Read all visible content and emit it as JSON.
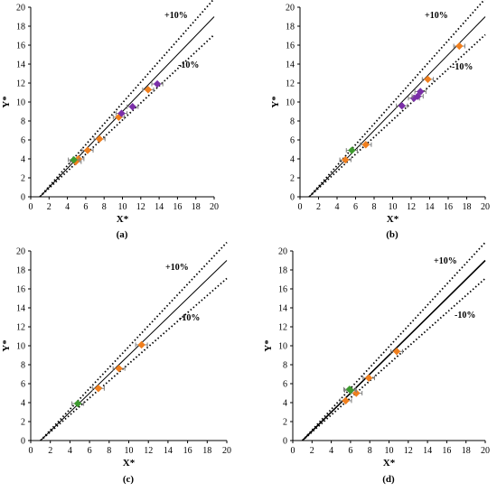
{
  "colors": {
    "orange": "#f07f1e",
    "purple": "#7a2fa8",
    "green": "#3d9a2e",
    "errorbar": "#7f7f7f",
    "line": "#000000"
  },
  "chart_data": [
    {
      "type": "scatter",
      "caption": "(a)",
      "xlabel": "X*",
      "ylabel": "Y*",
      "xlim": [
        0,
        20
      ],
      "ylim": [
        0,
        20
      ],
      "xticks": [
        "0",
        "2",
        "4",
        "6",
        "8",
        "10",
        "12",
        "14",
        "16",
        "18",
        "20"
      ],
      "yticks": [
        "0",
        "2",
        "4",
        "6",
        "8",
        "10",
        "12",
        "14",
        "16",
        "18",
        "20"
      ],
      "grid": false,
      "annotations": [
        {
          "text": "+10%"
        },
        {
          "text": "-10%"
        }
      ],
      "series": [
        {
          "color": "orange",
          "marker": "diamond",
          "points": [
            [
              4.9,
              3.7
            ],
            [
              5.2,
              4.0
            ],
            [
              6.2,
              4.9
            ],
            [
              7.5,
              6.1
            ],
            [
              9.6,
              8.4
            ],
            [
              12.8,
              11.3
            ]
          ]
        },
        {
          "color": "purple",
          "marker": "diamond",
          "points": [
            [
              9.9,
              8.8
            ],
            [
              11.1,
              9.5
            ],
            [
              13.8,
              11.9
            ]
          ]
        },
        {
          "color": "green",
          "marker": "diamond",
          "points": [
            [
              4.7,
              3.9
            ]
          ]
        }
      ]
    },
    {
      "type": "scatter",
      "caption": "(b)",
      "xlabel": "X*",
      "ylabel": "Y*",
      "xlim": [
        0,
        20
      ],
      "ylim": [
        0,
        20
      ],
      "xticks": [
        "0",
        "2",
        "4",
        "6",
        "8",
        "10",
        "12",
        "14",
        "16",
        "18",
        "20"
      ],
      "yticks": [
        "0",
        "2",
        "4",
        "6",
        "8",
        "10",
        "12",
        "14",
        "16",
        "18",
        "20"
      ],
      "grid": false,
      "annotations": [
        {
          "text": "+10%"
        },
        {
          "text": "-10%"
        }
      ],
      "series": [
        {
          "color": "orange",
          "marker": "diamond",
          "points": [
            [
              4.9,
              3.9
            ],
            [
              7.1,
              5.5
            ],
            [
              13.8,
              12.4
            ],
            [
              17.2,
              15.9
            ]
          ]
        },
        {
          "color": "purple",
          "marker": "diamond",
          "points": [
            [
              11.0,
              9.6
            ],
            [
              12.3,
              10.4
            ],
            [
              12.7,
              10.6
            ],
            [
              13.0,
              11.1
            ]
          ]
        },
        {
          "color": "green",
          "marker": "diamond",
          "points": [
            [
              5.6,
              4.9
            ]
          ]
        }
      ]
    },
    {
      "type": "scatter",
      "caption": "(c)",
      "xlabel": "X*",
      "ylabel": "Y*",
      "xlim": [
        0,
        20
      ],
      "ylim": [
        0,
        20
      ],
      "xticks": [
        "0",
        "2",
        "4",
        "6",
        "8",
        "10",
        "12",
        "14",
        "16",
        "18",
        "20"
      ],
      "yticks": [
        "0",
        "2",
        "4",
        "6",
        "8",
        "10",
        "12",
        "14",
        "16",
        "18",
        "20"
      ],
      "grid": false,
      "annotations": [
        {
          "text": "+10%"
        },
        {
          "text": "-10%"
        }
      ],
      "series": [
        {
          "color": "orange",
          "marker": "diamond",
          "points": [
            [
              6.9,
              5.5
            ],
            [
              9.0,
              7.6
            ],
            [
              11.3,
              10.1
            ]
          ]
        },
        {
          "color": "green",
          "marker": "diamond",
          "points": [
            [
              4.8,
              3.9
            ]
          ]
        }
      ]
    },
    {
      "type": "scatter",
      "caption": "(d)",
      "xlabel": "X*",
      "ylabel": "Y*",
      "xlim": [
        0,
        20
      ],
      "ylim": [
        0,
        20
      ],
      "xticks": [
        "0",
        "2",
        "4",
        "6",
        "8",
        "10",
        "12",
        "14",
        "16",
        "18",
        "20"
      ],
      "yticks": [
        "0",
        "2",
        "4",
        "6",
        "8",
        "10",
        "12",
        "14",
        "16",
        "18",
        "20"
      ],
      "grid": false,
      "annotations": [
        {
          "text": "+10%"
        },
        {
          "text": "-10%"
        }
      ],
      "series": [
        {
          "color": "orange",
          "marker": "diamond",
          "points": [
            [
              5.5,
              4.2
            ],
            [
              6.6,
              5.0
            ],
            [
              7.9,
              6.6
            ],
            [
              10.8,
              9.4
            ]
          ]
        },
        {
          "color": "green",
          "marker": "diamond",
          "points": [
            [
              5.9,
              5.4
            ],
            [
              6.0,
              5.3
            ]
          ]
        }
      ]
    }
  ]
}
